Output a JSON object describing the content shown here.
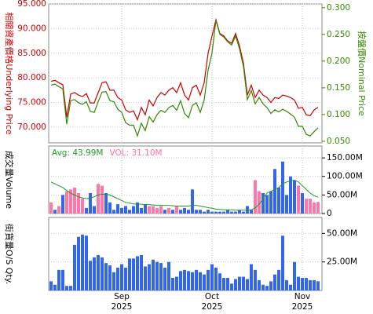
{
  "chart_data": [
    {
      "type": "line",
      "y_label": "相關資產價格Underlying Price",
      "y2_label": "按盤價Nominal Price",
      "ylim": [
        66.8,
        95
      ],
      "yticks": [
        {
          "value": 70,
          "label": "70.000"
        },
        {
          "value": 75,
          "label": "75.000"
        },
        {
          "value": 80,
          "label": "80.000"
        },
        {
          "value": 85,
          "label": "85.000"
        },
        {
          "value": 90,
          "label": "90.000"
        },
        {
          "value": 95,
          "label": "95.000"
        }
      ],
      "y2lim": [
        0.047,
        0.307
      ],
      "y2ticks": [
        {
          "value": 0.05,
          "label": "0.050"
        },
        {
          "value": 0.1,
          "label": "0.100"
        },
        {
          "value": 0.15,
          "label": "0.150"
        },
        {
          "value": 0.2,
          "label": "0.200"
        },
        {
          "value": 0.25,
          "label": "0.250"
        },
        {
          "value": 0.3,
          "label": "0.300"
        }
      ],
      "grid": true,
      "series": [
        {
          "color": "#cc0000",
          "values": [
            79.3,
            79.5,
            79.0,
            78.6,
            72.0,
            76.7,
            77.0,
            76.5,
            76.2,
            76.8,
            74.9,
            74.9,
            77.0,
            79.0,
            79.2,
            77.5,
            77.5,
            76.0,
            75.5,
            73.5,
            73.0,
            73.3,
            71.5,
            74.0,
            72.5,
            75.5,
            74.3,
            76.0,
            77.0,
            76.5,
            77.5,
            78.0,
            77.0,
            79.0,
            76.5,
            75.5,
            78.0,
            78.5,
            76.5,
            79.0,
            85.0,
            88.5,
            91.8,
            89.0,
            88.5,
            87.5,
            87.0,
            89.0,
            86.5,
            83.0,
            76.5,
            78.5,
            76.0,
            77.5,
            76.5,
            76.0,
            75.0,
            76.0,
            75.8,
            76.5,
            76.3,
            76.0,
            75.5,
            73.8,
            74.0,
            72.5,
            72.3,
            73.5,
            74.0
          ]
        },
        {
          "color": "#338800",
          "axis": "y2",
          "values": [
            0.155,
            0.157,
            0.152,
            0.148,
            0.082,
            0.126,
            0.128,
            0.122,
            0.119,
            0.124,
            0.106,
            0.104,
            0.124,
            0.142,
            0.143,
            0.126,
            0.124,
            0.11,
            0.104,
            0.085,
            0.08,
            0.08,
            0.06,
            0.084,
            0.07,
            0.096,
            0.086,
            0.1,
            0.108,
            0.104,
            0.113,
            0.117,
            0.108,
            0.126,
            0.102,
            0.094,
            0.117,
            0.122,
            0.104,
            0.127,
            0.183,
            0.215,
            0.276,
            0.25,
            0.245,
            0.236,
            0.23,
            0.247,
            0.223,
            0.19,
            0.128,
            0.145,
            0.12,
            0.132,
            0.12,
            0.113,
            0.102,
            0.109,
            0.105,
            0.11,
            0.106,
            0.101,
            0.095,
            0.078,
            0.078,
            0.063,
            0.06,
            0.068,
            0.075
          ]
        }
      ]
    },
    {
      "type": "bar",
      "y_label": "成交量Volume",
      "ylim": [
        0,
        182
      ],
      "yticks": [
        0,
        {
          "value": 50,
          "label": "50.00M"
        },
        {
          "value": 100,
          "label": "100.00M"
        },
        {
          "value": 150,
          "label": "150.00M"
        }
      ],
      "legend": [
        {
          "text": "Avg: 43.99M",
          "color": "#229922"
        },
        {
          "text": "VOL: 31.10M",
          "color": "#ff6fa8"
        }
      ],
      "values": [
        30,
        10,
        20,
        50,
        60,
        65,
        70,
        55,
        40,
        15,
        55,
        20,
        80,
        75,
        55,
        30,
        10,
        25,
        15,
        20,
        10,
        20,
        30,
        15,
        25,
        20,
        20,
        15,
        20,
        10,
        15,
        10,
        20,
        10,
        15,
        10,
        65,
        10,
        10,
        5,
        10,
        5,
        5,
        5,
        5,
        10,
        5,
        5,
        10,
        5,
        20,
        10,
        90,
        60,
        55,
        50,
        60,
        120,
        70,
        140,
        50,
        100,
        90,
        75,
        55,
        40,
        40,
        30,
        31.1
      ],
      "colors": [
        "#ff77aa",
        "#3366ee",
        "#ff77aa",
        "#3366ee",
        "#ff77aa",
        "#ff77aa",
        "#ff77aa",
        "#ff77aa",
        "#ff77aa",
        "#3366ee",
        "#3366ee",
        "#3366ee",
        "#ff77aa",
        "#ff77aa",
        "#3366ee",
        "#3366ee",
        "#3366ee",
        "#3366ee",
        "#3366ee",
        "#3366ee",
        "#3366ee",
        "#3366ee",
        "#3366ee",
        "#3366ee",
        "#3366ee",
        "#ff77aa",
        "#ff77aa",
        "#ff77aa",
        "#ff77aa",
        "#3366ee",
        "#ff77aa",
        "#3366ee",
        "#ff77aa",
        "#3366ee",
        "#3366ee",
        "#3366ee",
        "#3366ee",
        "#3366ee",
        "#3366ee",
        "#3366ee",
        "#3366ee",
        "#3366ee",
        "#3366ee",
        "#3366ee",
        "#3366ee",
        "#3366ee",
        "#3366ee",
        "#3366ee",
        "#3366ee",
        "#3366ee",
        "#3366ee",
        "#3366ee",
        "#ff77aa",
        "#ff77aa",
        "#3366ee",
        "#3366ee",
        "#3366ee",
        "#3366ee",
        "#3366ee",
        "#3366ee",
        "#3366ee",
        "#3366ee",
        "#3366ee",
        "#ff77aa",
        "#3366ee",
        "#ff77aa",
        "#ff77aa",
        "#ff77aa",
        "#ff77aa"
      ],
      "avg": {
        "color": "#229922",
        "values": [
          85,
          80,
          75,
          70,
          62,
          55,
          50,
          45,
          42,
          40,
          42,
          45,
          50,
          52,
          52,
          50,
          45,
          40,
          35,
          30,
          28,
          26,
          25,
          25,
          24,
          24,
          23,
          22,
          22,
          22,
          22,
          21,
          20,
          20,
          20,
          20,
          22,
          22,
          20,
          18,
          16,
          14,
          12,
          11,
          10,
          10,
          10,
          9,
          9,
          9,
          9,
          10,
          15,
          25,
          40,
          55,
          60,
          65,
          70,
          80,
          85,
          88,
          90,
          85,
          75,
          65,
          55,
          48,
          43.99
        ]
      }
    },
    {
      "type": "bar",
      "y_label": "街貨量O/S Qty.",
      "ylim": [
        0,
        64
      ],
      "yticks": [
        {
          "value": 25,
          "label": "25.00M"
        },
        {
          "value": 50,
          "label": "50.00M"
        }
      ],
      "color": "#3366ee",
      "values": [
        8,
        5,
        18,
        18,
        4,
        4,
        40,
        47,
        49,
        48,
        26,
        29,
        31,
        29,
        24,
        22,
        16,
        20,
        23,
        20,
        28,
        28,
        30,
        31,
        21,
        23,
        27,
        25,
        24,
        20,
        25,
        11,
        12,
        17,
        18,
        17,
        16,
        18,
        16,
        14,
        18,
        23,
        20,
        15,
        11,
        11,
        6,
        10,
        12,
        12,
        10,
        23,
        18,
        9,
        5,
        4,
        8,
        14,
        18,
        48,
        9,
        5,
        25,
        12,
        11,
        11,
        9,
        9,
        8
      ],
      "categories": [
        null,
        null,
        null,
        null,
        null,
        null,
        null,
        null,
        null,
        null,
        null,
        null,
        null,
        null,
        null,
        null,
        null,
        null,
        "Sep 2025",
        null,
        null,
        null,
        null,
        null,
        null,
        null,
        null,
        null,
        null,
        null,
        null,
        null,
        null,
        null,
        null,
        null,
        null,
        null,
        null,
        null,
        null,
        "Oct 2025",
        null,
        null,
        null,
        null,
        null,
        null,
        null,
        null,
        null,
        null,
        null,
        null,
        null,
        null,
        null,
        null,
        null,
        null,
        null,
        null,
        null,
        null,
        "Nov 2025",
        null,
        null,
        null,
        null
      ]
    }
  ]
}
